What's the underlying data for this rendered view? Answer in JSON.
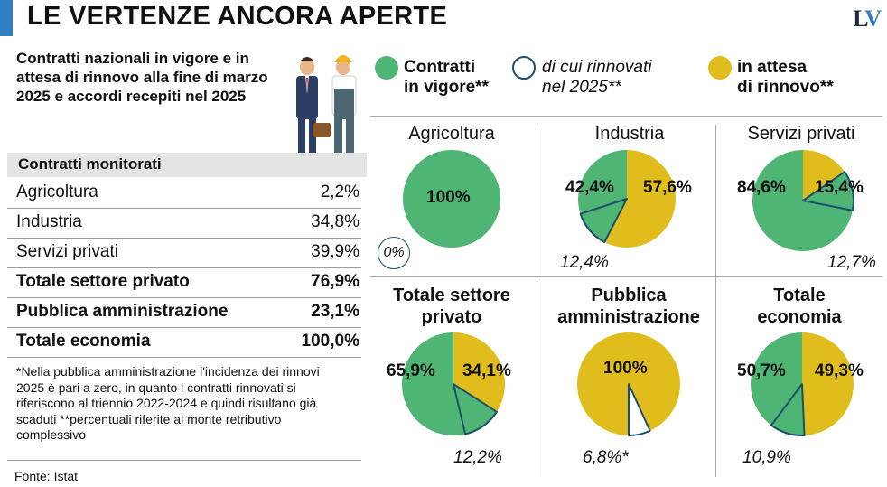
{
  "header": {
    "title": "LE VERTENZE ANCORA APERTE",
    "logo_l": "L",
    "logo_v": "V"
  },
  "subtitle": "Contratti nazionali in vigore e in attesa di rinnovo alla fine di marzo 2025 e accordi recepiti nel 2025",
  "table": {
    "header": "Contratti monitorati",
    "rows": [
      {
        "label": "Agricoltura",
        "value": "2,2%",
        "bold": false
      },
      {
        "label": "Industria",
        "value": "34,8%",
        "bold": false
      },
      {
        "label": "Servizi privati",
        "value": "39,9%",
        "bold": false
      },
      {
        "label": "Totale settore privato",
        "value": "76,9%",
        "bold": true
      },
      {
        "label": "Pubblica amministrazione",
        "value": "23,1%",
        "bold": true
      },
      {
        "label": "Totale economia",
        "value": "100,0%",
        "bold": true
      }
    ]
  },
  "footnote": "*Nella pubblica amministrazione l'incidenza dei rinnovi 2025 è pari a zero, in quanto i contratti rinnovati si riferiscono al triennio 2022-2024 e quindi risultano già scaduti **percentuali riferite al monte retributivo complessivo",
  "source": "Fonte: Istat",
  "legend": {
    "in_vigore_l1": "Contratti",
    "in_vigore_l2": "in vigore**",
    "rinnovati_l1": "di cui rinnovati",
    "rinnovati_l2": "nel 2025**",
    "attesa_l1": "in attesa",
    "attesa_l2": "di rinnovo**"
  },
  "colors": {
    "green": "#4fb574",
    "yellow": "#e0bd1c",
    "blue_bar": "#2f7fc1",
    "outline": "#1d4e6a",
    "header_band": "#e4e4e4"
  },
  "chart_data": [
    {
      "type": "pie",
      "title": "Agricoltura",
      "in_vigore": 100,
      "in_attesa": 0,
      "rinnovati": 0,
      "labels": {
        "in_vigore": "100%",
        "in_attesa": "",
        "rinnovati": "0%"
      }
    },
    {
      "type": "pie",
      "title": "Industria",
      "in_vigore": 42.4,
      "in_attesa": 57.6,
      "rinnovati": 12.4,
      "labels": {
        "in_vigore": "42,4%",
        "in_attesa": "57,6%",
        "rinnovati": "12,4%"
      }
    },
    {
      "type": "pie",
      "title": "Servizi privati",
      "in_vigore": 84.6,
      "in_attesa": 15.4,
      "rinnovati": 12.7,
      "labels": {
        "in_vigore": "84,6%",
        "in_attesa": "15,4%",
        "rinnovati": "12,7%"
      }
    },
    {
      "type": "pie",
      "title": "Totale settore privato",
      "in_vigore": 65.9,
      "in_attesa": 34.1,
      "rinnovati": 12.2,
      "labels": {
        "in_vigore": "65,9%",
        "in_attesa": "34,1%",
        "rinnovati": "12,2%"
      }
    },
    {
      "type": "pie",
      "title": "Pubblica amministrazione",
      "in_vigore": 0,
      "in_attesa": 100,
      "rinnovati": 6.8,
      "labels": {
        "in_vigore": "",
        "in_attesa": "100%",
        "rinnovati": "6,8%*"
      }
    },
    {
      "type": "pie",
      "title": "Totale economia",
      "in_vigore": 50.7,
      "in_attesa": 49.3,
      "rinnovati": 10.9,
      "labels": {
        "in_vigore": "50,7%",
        "in_attesa": "49,3%",
        "rinnovati": "10,9%"
      }
    }
  ]
}
